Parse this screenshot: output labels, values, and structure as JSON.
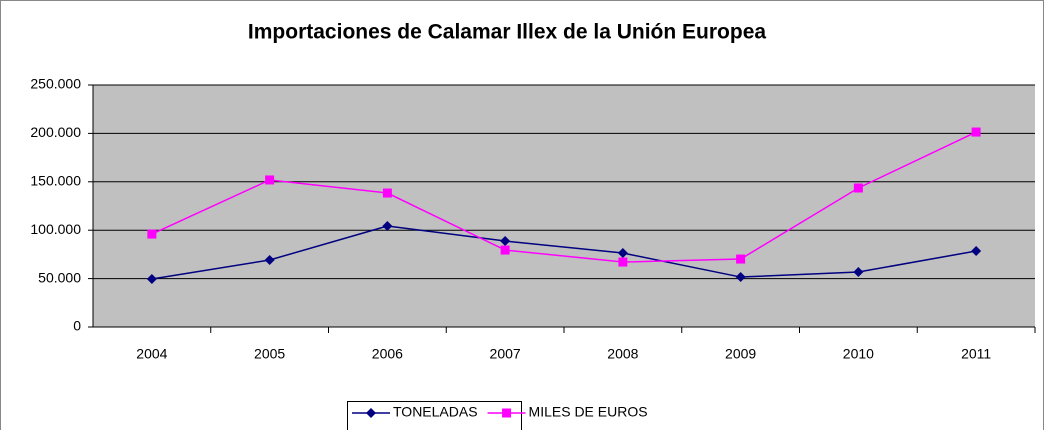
{
  "chart_data": {
    "type": "line",
    "title": "Importaciones de Calamar Illex de la Unión Europea",
    "categories": [
      "2004",
      "2005",
      "2006",
      "2007",
      "2008",
      "2009",
      "2010",
      "2011"
    ],
    "series": [
      {
        "name": "TONELADAS",
        "color": "#000080",
        "marker": "diamond",
        "values": [
          49600,
          69200,
          104300,
          88800,
          76400,
          51600,
          56800,
          78500
        ]
      },
      {
        "name": "MILES DE EUROS",
        "color": "#ff00ff",
        "marker": "square",
        "values": [
          96000,
          151900,
          138400,
          79500,
          67100,
          70200,
          143600,
          201400
        ]
      }
    ],
    "ylim": [
      0,
      250000
    ],
    "yticks": [
      0,
      {
        "value": 50000,
        "label": "50.000"
      },
      {
        "value": 100000,
        "label": "100.000"
      },
      {
        "value": 150000,
        "label": "150.000"
      },
      {
        "value": 200000,
        "label": "200.000"
      },
      {
        "value": 250000,
        "label": "250.000"
      }
    ],
    "grid": true,
    "legend": "bottom"
  }
}
